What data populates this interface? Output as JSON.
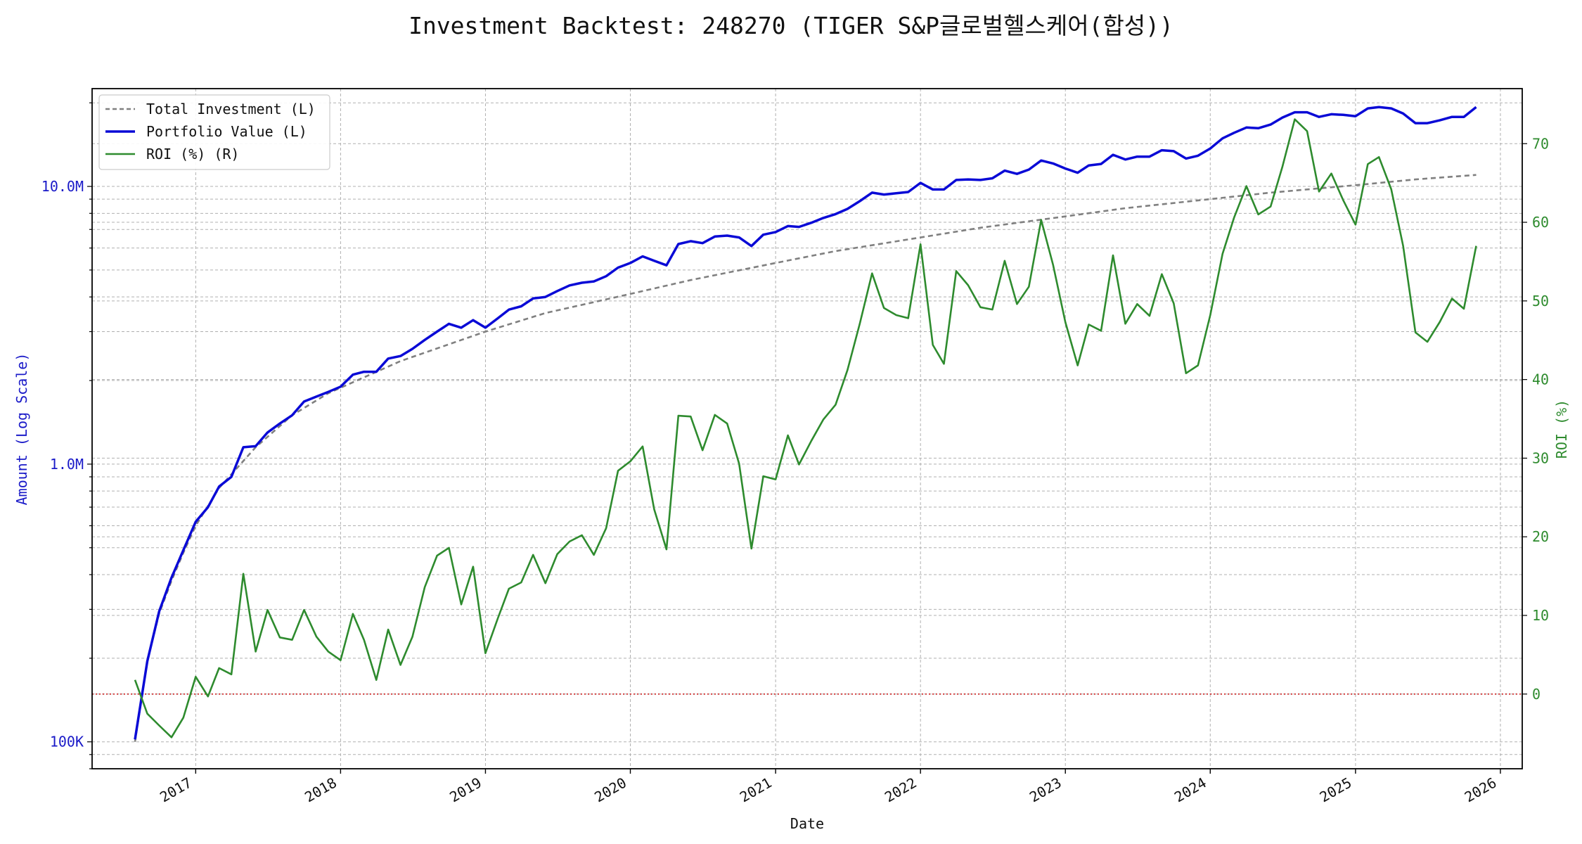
{
  "chart_data": {
    "type": "line",
    "title": "Investment Backtest: 248270 (TIGER S&P글로벌헬스케어(합성))",
    "xlabel": "Date",
    "ylabel_left": "Amount (Log Scale)",
    "ylabel_right": "ROI (%)",
    "x_range": [
      "2016-04-15",
      "2026-02-25"
    ],
    "x_tick_labels": [
      "2017",
      "2018",
      "2019",
      "2020",
      "2021",
      "2022",
      "2023",
      "2024",
      "2025",
      "2026"
    ],
    "y_left_scale": "log",
    "y_left_range": [
      80000,
      22500000
    ],
    "y_left_tick_labels": [
      {
        "value": 100000,
        "label": "100K"
      },
      {
        "value": 1000000,
        "label": "1.0M"
      },
      {
        "value": 10000000,
        "label": "10.0M"
      }
    ],
    "y_right_range": [
      -9.5,
      77
    ],
    "y_right_ticks": [
      0,
      10,
      20,
      30,
      40,
      50,
      60,
      70
    ],
    "reference_line": {
      "axis": "right",
      "value": 0,
      "style": "dotted",
      "color": "#cc2222"
    },
    "grid": true,
    "legend_position": "upper-left",
    "colors": {
      "total_investment": "#808080",
      "portfolio_value": "#0a0ad6",
      "roi": "#2e8b2e",
      "left_axis": "#1a1ac8",
      "right_axis": "#2e8b2e"
    },
    "series": [
      {
        "name": "Total Investment (L)",
        "axis": "left",
        "style": "dashed",
        "x": [
          "2016-08-01",
          "2016-09-01",
          "2016-10-01",
          "2016-11-01",
          "2016-12-01",
          "2017-01-01",
          "2017-03-01",
          "2017-06-01",
          "2017-09-01",
          "2017-12-01",
          "2018-06-01",
          "2019-01-01",
          "2019-06-01",
          "2020-01-01",
          "2020-06-01",
          "2021-01-01",
          "2021-06-01",
          "2022-01-01",
          "2022-06-01",
          "2023-01-01",
          "2023-06-01",
          "2024-01-01",
          "2024-06-01",
          "2025-01-01",
          "2025-06-01",
          "2025-11-01"
        ],
        "values": [
          100000,
          195000,
          290000,
          380000,
          480000,
          600000,
          820000,
          1150000,
          1500000,
          1800000,
          2350000,
          3000000,
          3500000,
          4100000,
          4600000,
          5300000,
          5850000,
          6550000,
          7100000,
          7800000,
          8350000,
          9000000,
          9500000,
          10100000,
          10600000,
          11000000
        ]
      },
      {
        "name": "Portfolio Value (L)",
        "axis": "left",
        "style": "solid",
        "x": [
          "2016-08-01",
          "2016-09-01",
          "2016-10-01",
          "2016-11-01",
          "2016-12-01",
          "2017-01-01",
          "2017-02-01",
          "2017-03-01",
          "2017-04-01",
          "2017-05-01",
          "2017-06-01",
          "2017-07-01",
          "2017-08-01",
          "2017-09-01",
          "2017-10-01",
          "2017-11-01",
          "2017-12-01",
          "2018-01-01",
          "2018-02-01",
          "2018-03-01",
          "2018-04-01",
          "2018-05-01",
          "2018-06-01",
          "2018-07-01",
          "2018-08-01",
          "2018-09-01",
          "2018-10-01",
          "2018-11-01",
          "2018-12-01",
          "2019-01-01",
          "2019-02-01",
          "2019-03-01",
          "2019-04-01",
          "2019-05-01",
          "2019-06-01",
          "2019-07-01",
          "2019-08-01",
          "2019-09-01",
          "2019-10-01",
          "2019-11-01",
          "2019-12-01",
          "2020-01-01",
          "2020-02-01",
          "2020-03-01",
          "2020-04-01",
          "2020-05-01",
          "2020-06-01",
          "2020-07-01",
          "2020-08-01",
          "2020-09-01",
          "2020-10-01",
          "2020-11-01",
          "2020-12-01",
          "2021-01-01",
          "2021-02-01",
          "2021-03-01",
          "2021-04-01",
          "2021-05-01",
          "2021-06-01",
          "2021-07-01",
          "2021-08-01",
          "2021-09-01",
          "2021-10-01",
          "2021-11-01",
          "2021-12-01",
          "2022-01-01",
          "2022-02-01",
          "2022-03-01",
          "2022-04-01",
          "2022-05-01",
          "2022-06-01",
          "2022-07-01",
          "2022-08-01",
          "2022-09-01",
          "2022-10-01",
          "2022-11-01",
          "2022-12-01",
          "2023-01-01",
          "2023-02-01",
          "2023-03-01",
          "2023-04-01",
          "2023-05-01",
          "2023-06-01",
          "2023-07-01",
          "2023-08-01",
          "2023-09-01",
          "2023-10-01",
          "2023-11-01",
          "2023-12-01",
          "2024-01-01",
          "2024-02-01",
          "2024-03-01",
          "2024-04-01",
          "2024-05-01",
          "2024-06-01",
          "2024-07-01",
          "2024-08-01",
          "2024-09-01",
          "2024-10-01",
          "2024-11-01",
          "2024-12-01",
          "2025-01-01",
          "2025-02-01",
          "2025-03-01",
          "2025-04-01",
          "2025-05-01",
          "2025-06-01",
          "2025-07-01",
          "2025-08-01",
          "2025-09-01",
          "2025-10-01",
          "2025-11-01"
        ],
        "values": [
          102000,
          195000,
          295000,
          390000,
          490000,
          620000,
          700000,
          830000,
          900000,
          1150000,
          1160000,
          1300000,
          1400000,
          1500000,
          1680000,
          1750000,
          1820000,
          1900000,
          2100000,
          2150000,
          2150000,
          2400000,
          2450000,
          2600000,
          2800000,
          3000000,
          3200000,
          3100000,
          3300000,
          3100000,
          3350000,
          3600000,
          3700000,
          3950000,
          4000000,
          4200000,
          4400000,
          4500000,
          4550000,
          4750000,
          5100000,
          5300000,
          5600000,
          5400000,
          5200000,
          6200000,
          6350000,
          6250000,
          6600000,
          6650000,
          6550000,
          6100000,
          6700000,
          6850000,
          7200000,
          7150000,
          7400000,
          7700000,
          7950000,
          8300000,
          8850000,
          9500000,
          9350000,
          9450000,
          9550000,
          10300000,
          9750000,
          9750000,
          10550000,
          10600000,
          10550000,
          10700000,
          11400000,
          11100000,
          11500000,
          12400000,
          12100000,
          11600000,
          11200000,
          11900000,
          12050000,
          13000000,
          12500000,
          12800000,
          12800000,
          13500000,
          13400000,
          12600000,
          12900000,
          13700000,
          14900000,
          15600000,
          16300000,
          16200000,
          16700000,
          17700000,
          18500000,
          18500000,
          17800000,
          18200000,
          18100000,
          17900000,
          19100000,
          19300000,
          19100000,
          18300000,
          16900000,
          16900000,
          17300000,
          17800000,
          17800000,
          19300000
        ]
      },
      {
        "name": "ROI (%) (R)",
        "axis": "right",
        "style": "solid",
        "x": [
          "2016-08-01",
          "2016-09-01",
          "2016-10-01",
          "2016-11-01",
          "2016-12-01",
          "2017-01-01",
          "2017-02-01",
          "2017-03-01",
          "2017-04-01",
          "2017-05-01",
          "2017-06-01",
          "2017-07-01",
          "2017-08-01",
          "2017-09-01",
          "2017-10-01",
          "2017-11-01",
          "2017-12-01",
          "2018-01-01",
          "2018-02-01",
          "2018-03-01",
          "2018-04-01",
          "2018-05-01",
          "2018-06-01",
          "2018-07-01",
          "2018-08-01",
          "2018-09-01",
          "2018-10-01",
          "2018-11-01",
          "2018-12-01",
          "2019-01-01",
          "2019-02-01",
          "2019-03-01",
          "2019-04-01",
          "2019-05-01",
          "2019-06-01",
          "2019-07-01",
          "2019-08-01",
          "2019-09-01",
          "2019-10-01",
          "2019-11-01",
          "2019-12-01",
          "2020-01-01",
          "2020-02-01",
          "2020-03-01",
          "2020-04-01",
          "2020-05-01",
          "2020-06-01",
          "2020-07-01",
          "2020-08-01",
          "2020-09-01",
          "2020-10-01",
          "2020-11-01",
          "2020-12-01",
          "2021-01-01",
          "2021-02-01",
          "2021-03-01",
          "2021-04-01",
          "2021-05-01",
          "2021-06-01",
          "2021-07-01",
          "2021-08-01",
          "2021-09-01",
          "2021-10-01",
          "2021-11-01",
          "2021-12-01",
          "2022-01-01",
          "2022-02-01",
          "2022-03-01",
          "2022-04-01",
          "2022-05-01",
          "2022-06-01",
          "2022-07-01",
          "2022-08-01",
          "2022-09-01",
          "2022-10-01",
          "2022-11-01",
          "2022-12-01",
          "2023-01-01",
          "2023-02-01",
          "2023-03-01",
          "2023-04-01",
          "2023-05-01",
          "2023-06-01",
          "2023-07-01",
          "2023-08-01",
          "2023-09-01",
          "2023-10-01",
          "2023-11-01",
          "2023-12-01",
          "2024-01-01",
          "2024-02-01",
          "2024-03-01",
          "2024-04-01",
          "2024-05-01",
          "2024-06-01",
          "2024-07-01",
          "2024-08-01",
          "2024-09-01",
          "2024-10-01",
          "2024-11-01",
          "2024-12-01",
          "2025-01-01",
          "2025-02-01",
          "2025-03-01",
          "2025-04-01",
          "2025-05-01",
          "2025-06-01",
          "2025-07-01",
          "2025-08-01",
          "2025-09-01",
          "2025-10-01",
          "2025-11-01"
        ],
        "values": [
          1.8,
          -2.5,
          -4.0,
          -5.5,
          -3.0,
          2.2,
          -0.3,
          3.3,
          2.5,
          15.3,
          5.4,
          10.7,
          7.2,
          6.9,
          10.7,
          7.3,
          5.4,
          4.3,
          10.2,
          6.9,
          1.8,
          8.2,
          3.7,
          7.3,
          13.6,
          17.6,
          18.6,
          11.4,
          16.2,
          5.2,
          9.6,
          13.4,
          14.2,
          17.7,
          14.1,
          17.8,
          19.4,
          20.2,
          17.7,
          21.1,
          28.4,
          29.6,
          31.5,
          23.5,
          18.4,
          35.4,
          35.3,
          31.0,
          35.5,
          34.4,
          29.3,
          18.5,
          27.7,
          27.3,
          32.9,
          29.2,
          32.2,
          34.9,
          36.8,
          41.2,
          47.1,
          53.5,
          49.1,
          48.2,
          47.8,
          57.2,
          44.4,
          42.0,
          53.8,
          52.0,
          49.2,
          48.9,
          55.1,
          49.6,
          51.8,
          60.3,
          54.6,
          47.3,
          41.8,
          47.0,
          46.2,
          55.8,
          47.1,
          49.6,
          48.1,
          53.4,
          49.7,
          40.8,
          41.8,
          48.2,
          56.0,
          60.6,
          64.6,
          61.0,
          62.0,
          67.1,
          73.1,
          71.6,
          63.9,
          66.2,
          62.8,
          59.7,
          67.4,
          68.3,
          64.2,
          57.0,
          46.0,
          44.8,
          47.3,
          50.3,
          49.0,
          57.0
        ]
      }
    ]
  }
}
